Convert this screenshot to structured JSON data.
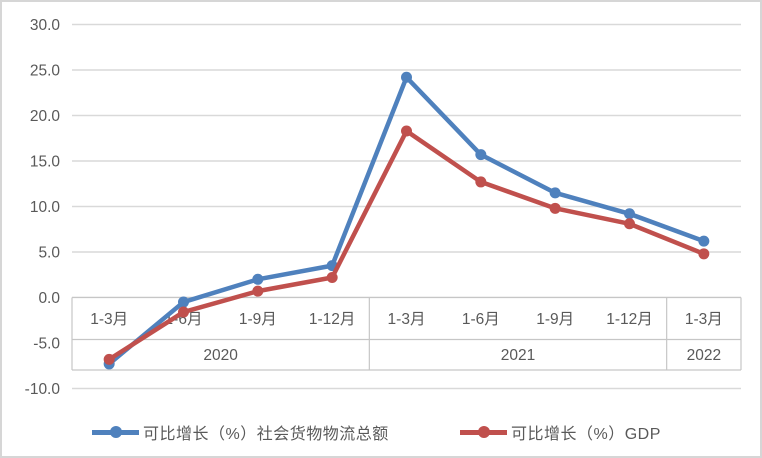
{
  "chart_data": {
    "type": "line",
    "title": "",
    "xlabel": "",
    "ylabel": "",
    "categories": [
      "1-3月",
      "1-6月",
      "1-9月",
      "1-12月",
      "1-3月",
      "1-6月",
      "1-9月",
      "1-12月",
      "1-3月"
    ],
    "year_groups": [
      {
        "label": "2020",
        "span": 4
      },
      {
        "label": "2021",
        "span": 4
      },
      {
        "label": "2022",
        "span": 1
      }
    ],
    "series": [
      {
        "name": "可比增长（%）社会货物物流总额",
        "color": "#4F81BD",
        "values": [
          -7.3,
          -0.5,
          2.0,
          3.5,
          24.2,
          15.7,
          11.5,
          9.2,
          6.2
        ]
      },
      {
        "name": "可比增长（%）GDP",
        "color": "#C0504D",
        "values": [
          -6.8,
          -1.6,
          0.7,
          2.2,
          18.3,
          12.7,
          9.8,
          8.1,
          4.8
        ]
      }
    ],
    "ylim": [
      -10,
      30
    ],
    "ytick_step": 5,
    "yticks": [
      "30.0",
      "25.0",
      "20.0",
      "15.0",
      "10.0",
      "5.0",
      "0.0",
      "-5.0",
      "-10.0"
    ],
    "grid": true,
    "legend_position": "bottom"
  },
  "colors": {
    "grid_line": "#d9d9d9",
    "table_border": "#c6c6c6",
    "tick_text": "#595959",
    "background": "#ffffff",
    "frame_border": "#d6d6d6"
  }
}
